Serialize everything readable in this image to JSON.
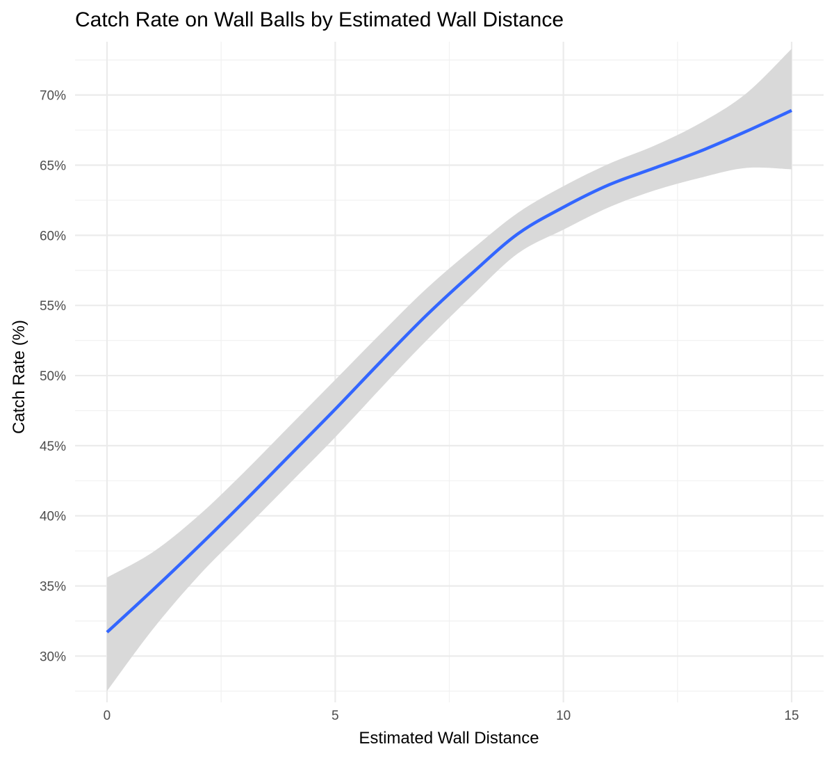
{
  "chart_data": {
    "type": "line",
    "title": "Catch Rate on Wall Balls by Estimated Wall Distance",
    "xlabel": "Estimated Wall Distance",
    "ylabel": "Catch Rate (%)",
    "xlim": [
      -0.7,
      15.7
    ],
    "ylim": [
      0.267,
      0.738
    ],
    "x_ticks": [
      0,
      5,
      10,
      15
    ],
    "x_tick_labels": [
      "0",
      "5",
      "10",
      "15"
    ],
    "y_ticks": [
      0.3,
      0.35,
      0.4,
      0.45,
      0.5,
      0.55,
      0.6,
      0.65,
      0.7
    ],
    "y_tick_labels": [
      "30%",
      "35%",
      "40%",
      "45%",
      "50%",
      "55%",
      "60%",
      "65%",
      "70%"
    ],
    "grid": true,
    "legend": "none",
    "series": [
      {
        "kind": "smooth-fit-with-confidence-band",
        "color": "#3366ff",
        "band_color": "#d9d9d9",
        "x": [
          0,
          1,
          2,
          3,
          4,
          5,
          6,
          7,
          8,
          9,
          10,
          11,
          12,
          13,
          14,
          15
        ],
        "y": [
          0.317,
          0.347,
          0.378,
          0.41,
          0.443,
          0.476,
          0.51,
          0.543,
          0.573,
          0.601,
          0.62,
          0.636,
          0.648,
          0.66,
          0.674,
          0.689
        ],
        "lower": [
          0.275,
          0.319,
          0.357,
          0.39,
          0.423,
          0.456,
          0.491,
          0.525,
          0.557,
          0.587,
          0.604,
          0.62,
          0.632,
          0.641,
          0.648,
          0.647
        ],
        "upper": [
          0.356,
          0.374,
          0.4,
          0.431,
          0.464,
          0.497,
          0.53,
          0.562,
          0.59,
          0.616,
          0.635,
          0.651,
          0.664,
          0.68,
          0.701,
          0.733
        ]
      }
    ]
  }
}
